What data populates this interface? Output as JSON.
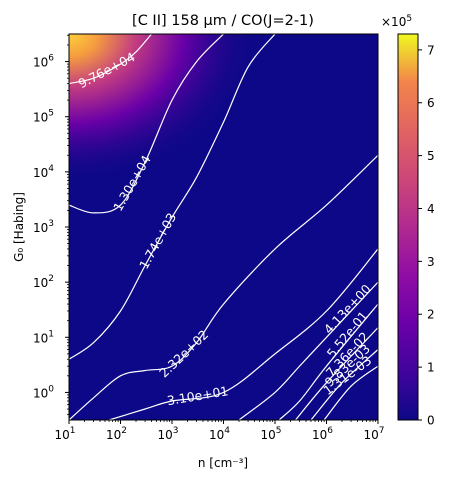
{
  "chart_data": {
    "type": "heatmap",
    "title": "[C II] 158 μm / CO(J=2-1)",
    "xlabel": "n [cm⁻³]",
    "ylabel": "G₀ [Habing]",
    "x_scale": "log",
    "y_scale": "log",
    "xlim": [
      10,
      10000000
    ],
    "ylim": [
      0.3162,
      3162278
    ],
    "x_ticks": [
      {
        "value": 10,
        "base": "10",
        "exp": "1"
      },
      {
        "value": 100,
        "base": "10",
        "exp": "2"
      },
      {
        "value": 1000,
        "base": "10",
        "exp": "3"
      },
      {
        "value": 10000,
        "base": "10",
        "exp": "4"
      },
      {
        "value": 100000,
        "base": "10",
        "exp": "5"
      },
      {
        "value": 1000000,
        "base": "10",
        "exp": "6"
      },
      {
        "value": 10000000,
        "base": "10",
        "exp": "7"
      }
    ],
    "y_ticks": [
      {
        "value": 1,
        "base": "10",
        "exp": "0"
      },
      {
        "value": 10,
        "base": "10",
        "exp": "1"
      },
      {
        "value": 100,
        "base": "10",
        "exp": "2"
      },
      {
        "value": 1000,
        "base": "10",
        "exp": "3"
      },
      {
        "value": 10000,
        "base": "10",
        "exp": "4"
      },
      {
        "value": 100000,
        "base": "10",
        "exp": "5"
      },
      {
        "value": 1000000,
        "base": "10",
        "exp": "6"
      }
    ],
    "colorbar": {
      "colormap": "plasma",
      "vmin": 0,
      "vmax": 7.3,
      "multiplier": "×10",
      "multiplier_exp": "5",
      "ticks": [
        "0",
        "1",
        "2",
        "3",
        "4",
        "5",
        "6",
        "7"
      ]
    },
    "hotspot": {
      "x": 10,
      "y": 3162278,
      "value_scaled": 7.3
    },
    "contours": [
      {
        "label": "9.76e+04",
        "points": [
          [
            10,
            400000
          ],
          [
            30,
            500000
          ],
          [
            100,
            900000
          ],
          [
            200,
            1500000
          ],
          [
            400,
            3162278
          ]
        ]
      },
      {
        "label": "1.30e+04",
        "points": [
          [
            10,
            2500
          ],
          [
            30,
            1800
          ],
          [
            100,
            2500
          ],
          [
            300,
            15000
          ],
          [
            1000,
            200000
          ],
          [
            3000,
            1000000
          ],
          [
            10000,
            3162278
          ]
        ]
      },
      {
        "label": "1.74e+03",
        "points": [
          [
            10,
            4
          ],
          [
            30,
            8
          ],
          [
            100,
            30
          ],
          [
            300,
            200
          ],
          [
            1000,
            1500
          ],
          [
            3000,
            8000
          ],
          [
            10000,
            80000
          ],
          [
            30000,
            800000
          ],
          [
            100000,
            3162278
          ]
        ]
      },
      {
        "label": "2.32e+02",
        "points": [
          [
            10,
            0.3162
          ],
          [
            30,
            0.8
          ],
          [
            100,
            2
          ],
          [
            300,
            2.5
          ],
          [
            1000,
            3
          ],
          [
            3000,
            8
          ],
          [
            10000,
            40
          ],
          [
            100000,
            400
          ],
          [
            1000000,
            2500
          ],
          [
            10000000,
            20000
          ]
        ]
      },
      {
        "label": "3.10e+01",
        "points": [
          [
            60,
            0.3162
          ],
          [
            300,
            0.5
          ],
          [
            1000,
            0.7
          ],
          [
            10000,
            1
          ],
          [
            100000,
            5
          ],
          [
            1000000,
            30
          ],
          [
            10000000,
            400
          ]
        ]
      },
      {
        "label": "4.13e+00",
        "points": [
          [
            20000,
            0.3162
          ],
          [
            100000,
            1
          ],
          [
            300000,
            3
          ],
          [
            1000000,
            10
          ],
          [
            10000000,
            100
          ]
        ]
      },
      {
        "label": "5.52e-01",
        "points": [
          [
            120000,
            0.3162
          ],
          [
            300000,
            0.7
          ],
          [
            1000000,
            3
          ],
          [
            10000000,
            40
          ]
        ]
      },
      {
        "label": "7.36e-02",
        "points": [
          [
            250000,
            0.3162
          ],
          [
            1000000,
            1.5
          ],
          [
            10000000,
            15
          ]
        ]
      },
      {
        "label": "9.83e-03",
        "points": [
          [
            500000,
            0.3162
          ],
          [
            2000000,
            1.5
          ],
          [
            10000000,
            6
          ]
        ]
      },
      {
        "label": "1.31e-03",
        "points": [
          [
            900000,
            0.3162
          ],
          [
            3000000,
            1.3
          ],
          [
            10000000,
            3
          ]
        ]
      }
    ]
  }
}
